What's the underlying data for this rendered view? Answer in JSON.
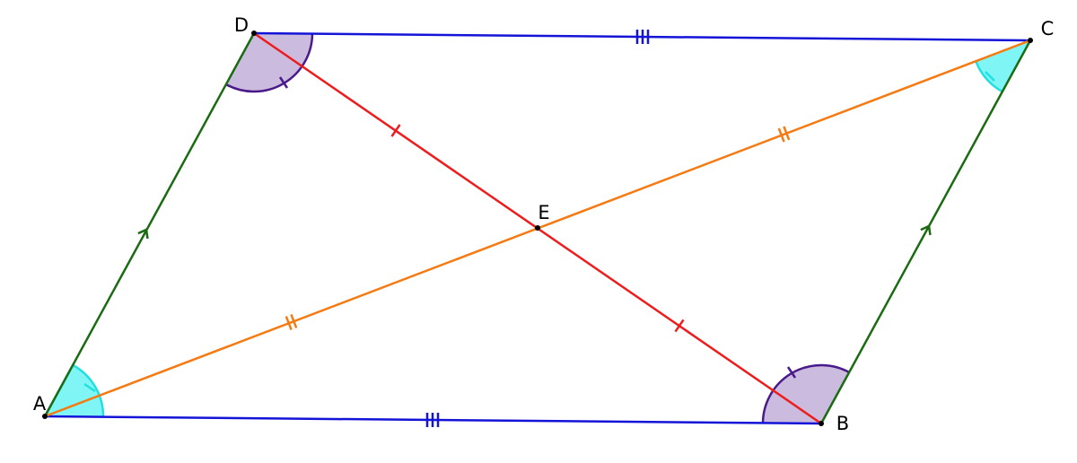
{
  "points": {
    "A": "A",
    "B": "B",
    "C": "C",
    "D": "D",
    "E": "E"
  }
}
